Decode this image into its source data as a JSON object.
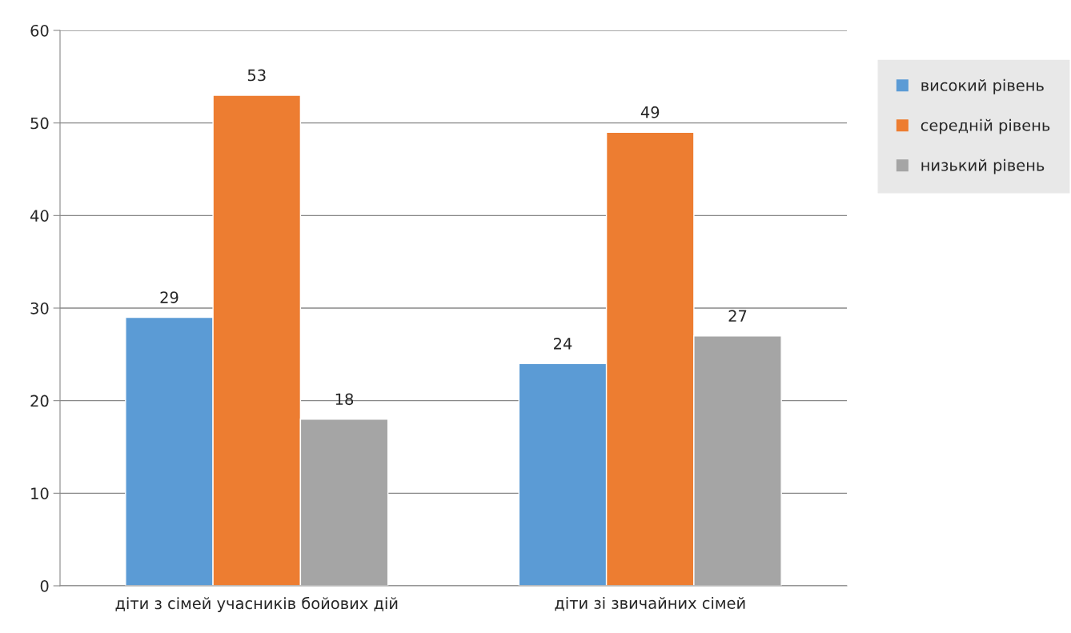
{
  "chart_data": {
    "type": "bar",
    "categories": [
      "діти з сімей учасників бойових дій",
      "діти зі звичайних сімей"
    ],
    "series": [
      {
        "name": "високий рівень",
        "color": "#5b9bd5",
        "values": [
          29,
          24
        ]
      },
      {
        "name": "середній рівень",
        "color": "#ed7d31",
        "values": [
          53,
          49
        ]
      },
      {
        "name": "низький рівень",
        "color": "#a5a5a5",
        "values": [
          18,
          27
        ]
      }
    ],
    "ylim": [
      0,
      60
    ],
    "yticks": [
      0,
      10,
      20,
      30,
      40,
      50,
      60
    ],
    "grid": "y",
    "legend": "right",
    "data_labels": true
  }
}
